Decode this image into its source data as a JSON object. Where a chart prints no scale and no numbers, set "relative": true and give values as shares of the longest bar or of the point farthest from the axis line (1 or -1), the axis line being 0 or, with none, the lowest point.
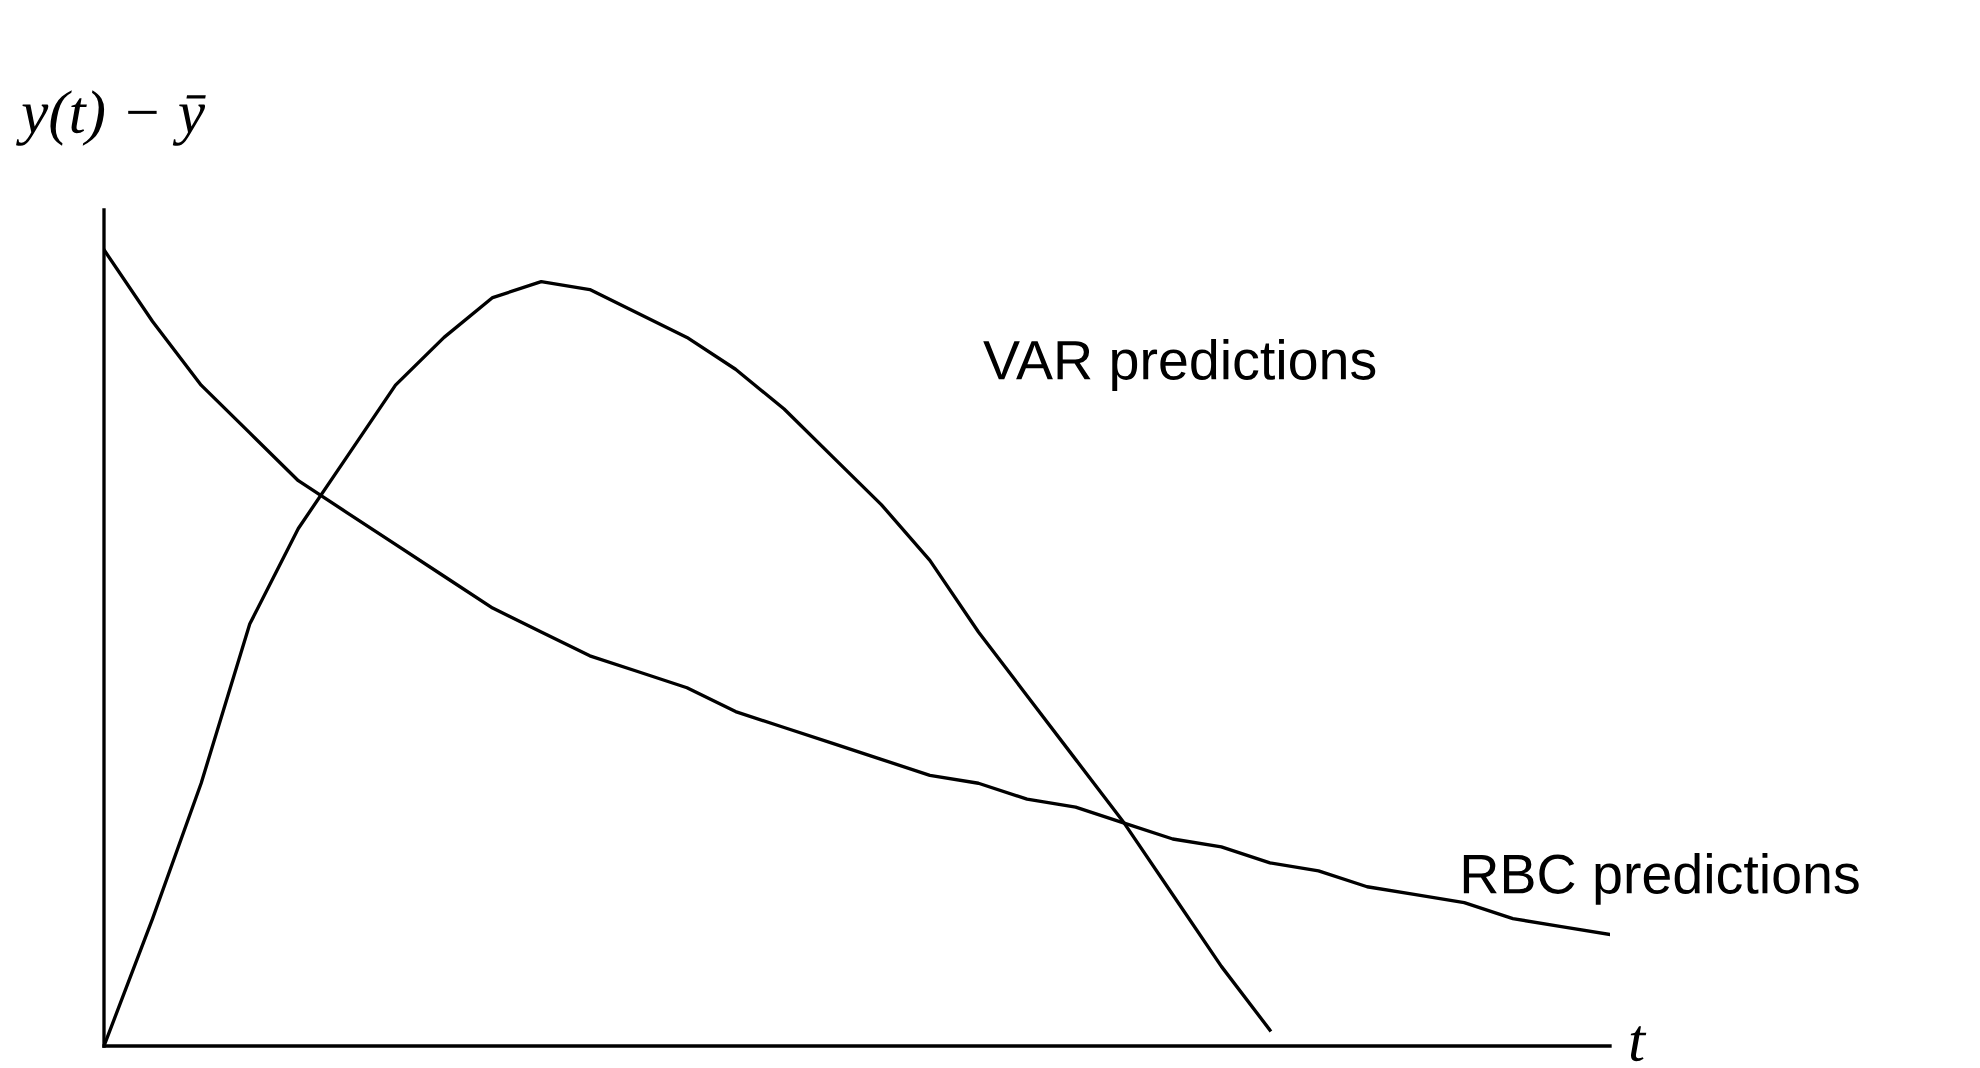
{
  "chart_data": {
    "type": "line",
    "relative": true,
    "xlabel": "t",
    "ylabel": "y(t) − ȳ",
    "categories": [
      null,
      null,
      null,
      null,
      null,
      null,
      null,
      null,
      null,
      null,
      null,
      null,
      null,
      null,
      null,
      null,
      null,
      null,
      null,
      null,
      null,
      null,
      null,
      null,
      null,
      null,
      null,
      null,
      null,
      null,
      null,
      null
    ],
    "series": [
      {
        "name": "VAR predictions",
        "color": "#000000",
        "values": [
          0,
          0.16,
          0.33,
          0.53,
          0.65,
          0.74,
          0.83,
          0.89,
          0.94,
          0.96,
          0.95,
          0.92,
          0.89,
          0.85,
          0.8,
          0.74,
          0.68,
          0.61,
          0.52,
          0.44,
          0.36,
          0.28,
          0.19,
          0.1,
          0.02,
          null,
          null,
          null,
          null,
          null,
          null,
          null
        ]
      },
      {
        "name": "RBC predictions",
        "color": "#000000",
        "values": [
          1,
          0.91,
          0.83,
          0.77,
          0.71,
          0.67,
          0.63,
          0.59,
          0.55,
          0.52,
          0.49,
          0.47,
          0.45,
          0.42,
          0.4,
          0.38,
          0.36,
          0.34,
          0.33,
          0.31,
          0.3,
          0.28,
          0.26,
          0.25,
          0.23,
          0.22,
          0.2,
          0.19,
          0.18,
          0.16,
          0.15,
          0.14
        ]
      }
    ],
    "legend": false,
    "marker": "none",
    "line_style": "solid"
  }
}
